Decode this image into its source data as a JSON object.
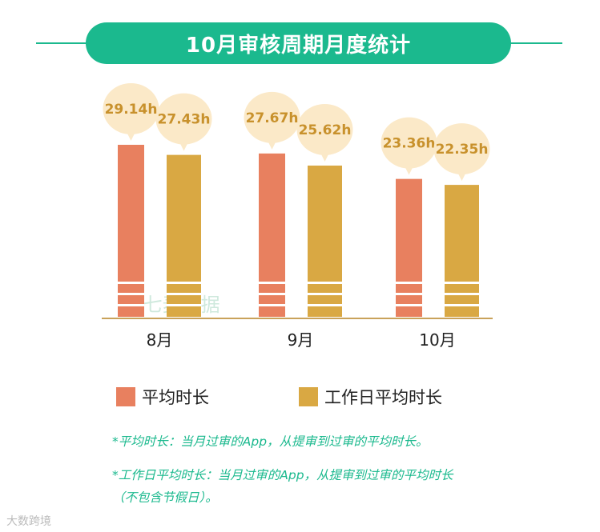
{
  "title": "10月审核周期月度统计",
  "legend": [
    {
      "label": "平均时长",
      "color": "#e8805f"
    },
    {
      "label": "工作日平均时长",
      "color": "#d9a843"
    }
  ],
  "notes": [
    "*平均时长：当月过审的App，从提审到过审的平均时长。",
    "*工作日平均时长：当月过审的App，从提审到过审的平均时长",
    "（不包含节假日）。"
  ],
  "watermark": "七麦数据",
  "footer_logo": "大数跨境",
  "colors": {
    "accent": "#1bb98e",
    "bubble": "#fbe9c8",
    "bubble_text": "#c8912c",
    "axis": "#c9a25a"
  },
  "chart_data": {
    "type": "bar",
    "title": "10月审核周期月度统计",
    "categories": [
      "8月",
      "9月",
      "10月"
    ],
    "series": [
      {
        "name": "平均时长",
        "values": [
          29.14,
          27.67,
          23.36
        ]
      },
      {
        "name": "工作日平均时长",
        "values": [
          27.43,
          25.62,
          22.35
        ]
      }
    ],
    "value_labels": [
      [
        "29.14h",
        "27.67h",
        "23.36h"
      ],
      [
        "27.43h",
        "25.62h",
        "22.35h"
      ]
    ],
    "unit": "h",
    "legend_position": "bottom",
    "grid": false
  }
}
